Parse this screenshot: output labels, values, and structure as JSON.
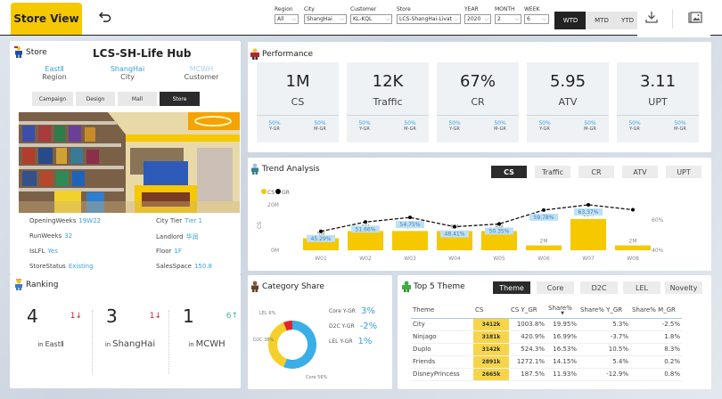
{
  "header": {
    "title_button": "Store View",
    "back_icon": "undo-arrow-icon",
    "filters": [
      {
        "label": "Region",
        "value": "All"
      },
      {
        "label": "City",
        "value": "ShangHai"
      },
      {
        "label": "Customer",
        "value": "KL-KQL"
      },
      {
        "label": "Store",
        "value": "LCS-ShangHai-Livat"
      },
      {
        "label": "YEAR",
        "value": "2020"
      },
      {
        "label": "MONTH",
        "value": "2"
      },
      {
        "label": "WEEK",
        "value": "6"
      }
    ],
    "period_buttons": [
      {
        "label": "WTD",
        "active": true
      },
      {
        "label": "MTD",
        "active": false
      },
      {
        "label": "YTD",
        "active": false
      }
    ],
    "tools": [
      "download-icon",
      "image-gallery-icon"
    ]
  },
  "store": {
    "section_label": "Store",
    "name": "LCS-SH-Life Hub",
    "geo": [
      {
        "value": "EastⅡ",
        "label": "Region"
      },
      {
        "value": "ShangHai",
        "label": "City"
      },
      {
        "value": "MCWH",
        "label": "Customer"
      }
    ],
    "segments": [
      {
        "label": "Campaign",
        "active": false
      },
      {
        "label": "Design",
        "active": false
      },
      {
        "label": "Mall",
        "active": false
      },
      {
        "label": "Store",
        "active": true
      }
    ],
    "attributes_left": [
      {
        "label": "OpeningWeeks",
        "value": "19W22"
      },
      {
        "label": "RunWeeks",
        "value": "32"
      },
      {
        "label": "IsLFL",
        "value": "Yes"
      },
      {
        "label": "StoreStatus",
        "value": "Existing"
      }
    ],
    "attributes_right": [
      {
        "label": "City Tier",
        "value": "Tier 1"
      },
      {
        "label": "Landlord",
        "value": "华润"
      },
      {
        "label": "Floor",
        "value": "1F"
      },
      {
        "label": "SalesSpace",
        "value": "150.8"
      }
    ]
  },
  "ranking": {
    "title": "Ranking",
    "items": [
      {
        "rank": "4",
        "change": "1↓",
        "direction": "down",
        "in_label": "in",
        "scope": "EastⅡ"
      },
      {
        "rank": "3",
        "change": "1↓",
        "direction": "down",
        "in_label": "in",
        "scope": "ShangHai"
      },
      {
        "rank": "1",
        "change": "6↑",
        "direction": "up",
        "in_label": "in",
        "scope": "MCWH"
      }
    ]
  },
  "performance": {
    "title": "Performance",
    "kpis": [
      {
        "value": "1M",
        "name": "CS",
        "y_gr": "50%",
        "y_gr_label": "Y-GR",
        "m_gr": "50%",
        "m_gr_label": "M-GR"
      },
      {
        "value": "12K",
        "name": "Traffic",
        "y_gr": "50%",
        "y_gr_label": "Y-GR",
        "m_gr": "50%",
        "m_gr_label": "M-GR"
      },
      {
        "value": "67%",
        "name": "CR",
        "y_gr": "50%",
        "y_gr_label": "Y-GR",
        "m_gr": "50%",
        "m_gr_label": "M-GR"
      },
      {
        "value": "5.95",
        "name": "ATV",
        "y_gr": "50%",
        "y_gr_label": "Y-GR",
        "m_gr": "50%",
        "m_gr_label": "M-GR"
      },
      {
        "value": "3.11",
        "name": "UPT",
        "y_gr": "50%",
        "y_gr_label": "Y-GR",
        "m_gr": "50%",
        "m_gr_label": "M-GR"
      }
    ]
  },
  "trend": {
    "title": "Trend Analysis",
    "tabs": [
      {
        "label": "CS",
        "active": true
      },
      {
        "label": "Traffic",
        "active": false
      },
      {
        "label": "CR",
        "active": false
      },
      {
        "label": "ATV",
        "active": false
      },
      {
        "label": "UPT",
        "active": false
      }
    ]
  },
  "category": {
    "title": "Category Share",
    "growth": [
      {
        "label": "Core Y-GR",
        "value": "3%"
      },
      {
        "label": "D2C Y-GR",
        "value": "-2%"
      },
      {
        "label": "LEL Y-GR",
        "value": "1%"
      }
    ]
  },
  "top5": {
    "title": "Top 5 Theme",
    "tabs": [
      {
        "label": "Theme",
        "active": true
      },
      {
        "label": "Core",
        "active": false
      },
      {
        "label": "D2C",
        "active": false
      },
      {
        "label": "LEL",
        "active": false
      },
      {
        "label": "Novelty",
        "active": false
      }
    ],
    "columns": [
      "Theme",
      "CS",
      "CS Y_GR",
      "Share%",
      "Share% Y_GR",
      "Share% M_GR"
    ],
    "sorted_column": "Share%",
    "rows": [
      [
        "City",
        "3412k",
        "1003.8%",
        "19.95%",
        "5.3%",
        "-2.5%"
      ],
      [
        "Ninjago",
        "3181k",
        "420.9%",
        "16.99%",
        "-3.7%",
        "1.8%"
      ],
      [
        "Duplo",
        "3142k",
        "524.3%",
        "16.53%",
        "10.5%",
        "8.3%"
      ],
      [
        "Friends",
        "2891k",
        "1272.1%",
        "14.15%",
        "5.4%",
        "0.2%"
      ],
      [
        "DisneyPrincess",
        "2665k",
        "187.5%",
        "11.93%",
        "-12.9%",
        "0.8%"
      ]
    ]
  },
  "chart_data": [
    {
      "type": "bar",
      "title": "Trend Analysis",
      "legend": [
        "CS",
        "GR"
      ],
      "legend_position": "top-left",
      "categories": [
        "W01",
        "W02",
        "W03",
        "W04",
        "W05",
        "W06",
        "W07",
        "W08"
      ],
      "series": [
        {
          "name": "CS",
          "kind": "bar",
          "color": "#f5c800",
          "values": [
            5,
            8,
            8,
            8,
            8,
            2,
            13,
            2
          ],
          "unit": "M",
          "labels": [
            "5M",
            "8M",
            "8M",
            "8M",
            "8M",
            "2M",
            "13M",
            "2M"
          ]
        },
        {
          "name": "GR",
          "kind": "line",
          "color": "#000000",
          "values": [
            45.29,
            51.66,
            54.75,
            48.41,
            50.35,
            59.78,
            63.37,
            60.0
          ],
          "unit": "%",
          "labels": [
            "45.29%",
            "51.66%",
            "54.75%",
            "48.41%",
            "50.35%",
            "59.78%",
            "63.37%",
            ""
          ]
        }
      ],
      "ylabel": "CS",
      "y_ticks": [
        "0M",
        "20M"
      ],
      "ylim": [
        0,
        20
      ],
      "y2_ticks": [
        "40%",
        "60%"
      ],
      "y2lim": [
        30,
        70
      ],
      "grid": false
    },
    {
      "type": "pie",
      "title": "Category Share",
      "donut": true,
      "categories": [
        "Core",
        "D2C",
        "LEL"
      ],
      "values": [
        56,
        38,
        6
      ],
      "labels": [
        "Core 56%",
        "D2C 38%",
        "LEL 6%"
      ],
      "colors": [
        "#3aaee6",
        "#f5cf2a",
        "#e0242c"
      ]
    }
  ]
}
